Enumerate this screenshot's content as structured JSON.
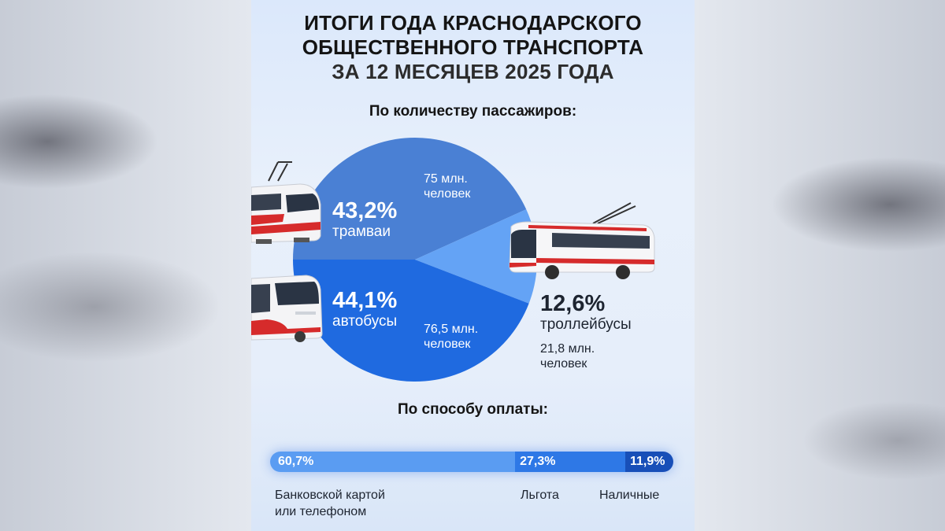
{
  "title": {
    "line1": "ИТОГИ ГОДА КРАСНОДАРСКОГО",
    "line2": "ОБЩЕСТВЕННОГО ТРАНСПОРТА",
    "line3": "ЗА 12 МЕСЯЦЕВ 2025 ГОДА"
  },
  "chart_data": [
    {
      "type": "pie",
      "title": "По количеству пассажиров:",
      "slices": [
        {
          "label": "трамваи",
          "percent": 43.2,
          "percent_text": "43,2%",
          "count_line1": "75 млн.",
          "count_line2": "человек",
          "color": "#4a80d4"
        },
        {
          "label": "автобусы",
          "percent": 44.1,
          "percent_text": "44,1%",
          "count_line1": "76,5 млн.",
          "count_line2": "человек",
          "color": "#1f6ae0"
        },
        {
          "label": "троллейбусы",
          "percent": 12.6,
          "percent_text": "12,6%",
          "count_line1": "21,8 млн.",
          "count_line2": "человек",
          "color": "#64a3f5"
        }
      ]
    },
    {
      "type": "bar",
      "orientation": "horizontal-stacked",
      "title": "По способу оплаты:",
      "segments": [
        {
          "label_line1": "Банковской картой",
          "label_line2": "или телефоном",
          "percent": 60.7,
          "percent_text": "60,7%",
          "color": "#5a9cf2"
        },
        {
          "label_line1": "Льгота",
          "label_line2": "",
          "percent": 27.3,
          "percent_text": "27,3%",
          "color": "#2e78e6"
        },
        {
          "label_line1": "Наличные",
          "label_line2": "",
          "percent": 11.9,
          "percent_text": "11,9%",
          "color": "#184fb8"
        }
      ]
    }
  ],
  "vehicles": {
    "tram": "tram-icon",
    "bus": "bus-icon",
    "trolleybus": "trolleybus-icon"
  }
}
